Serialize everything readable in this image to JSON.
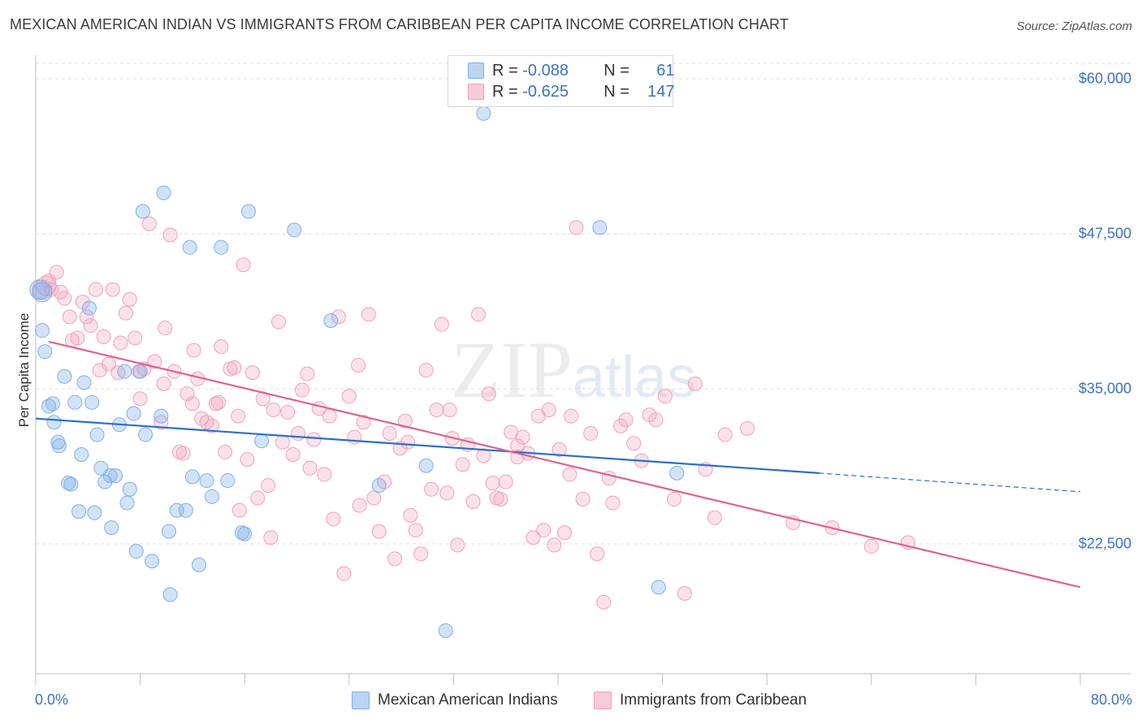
{
  "title": "MEXICAN AMERICAN INDIAN VS IMMIGRANTS FROM CARIBBEAN PER CAPITA INCOME CORRELATION CHART",
  "source": "Source: ZipAtlas.com",
  "watermark": {
    "zip": "ZIP",
    "atlas": "atlas"
  },
  "legend": {
    "rows": [
      {
        "r_label": "R =",
        "r_value": "-0.088",
        "n_label": "N =",
        "n_value": "61",
        "color": "#7eb0ea"
      },
      {
        "r_label": "R =",
        "r_value": "-0.625",
        "n_label": "N =",
        "n_value": "147",
        "color": "#f2a0b8"
      }
    ]
  },
  "bottom_legend": [
    "Mexican American Indians",
    "Immigrants from Caribbean"
  ],
  "colors": {
    "blue": "#7eb0ea",
    "blue_line": "#2d6ecc",
    "pink": "#f2a0b8",
    "pink_line": "#e0628e",
    "grid": "#dedede",
    "tick_text": "#3b73c4"
  },
  "chart_data": {
    "type": "scatter",
    "title": "MEXICAN AMERICAN INDIAN VS IMMIGRANTS FROM CARIBBEAN PER CAPITA INCOME CORRELATION CHART",
    "xlabel": "",
    "ylabel": "Per Capita Income",
    "xlim": [
      0,
      80
    ],
    "ylim": [
      12000,
      62000
    ],
    "x_tick_labels": [
      "0.0%",
      "80.0%"
    ],
    "y_ticks": [
      22500,
      35000,
      47500,
      60000
    ],
    "y_tick_labels": [
      "$22,500",
      "$35,000",
      "$47,500",
      "$60,000"
    ],
    "grid": true,
    "series": [
      {
        "name": "Mexican American Indians",
        "R": -0.088,
        "N": 61,
        "trend": {
          "x": [
            0,
            60
          ],
          "y": [
            32600,
            28200
          ],
          "dashed_to": [
            80,
            26700
          ]
        },
        "points": [
          [
            0.5,
            42800
          ],
          [
            0.5,
            39700
          ],
          [
            0.7,
            38000
          ],
          [
            1.0,
            33600
          ],
          [
            1.3,
            33800
          ],
          [
            1.4,
            32300
          ],
          [
            1.7,
            30700
          ],
          [
            1.8,
            30400
          ],
          [
            2.2,
            36000
          ],
          [
            2.5,
            27400
          ],
          [
            2.7,
            27300
          ],
          [
            3.0,
            33900
          ],
          [
            3.3,
            25100
          ],
          [
            3.5,
            29700
          ],
          [
            3.7,
            35500
          ],
          [
            4.1,
            41500
          ],
          [
            4.3,
            33900
          ],
          [
            4.5,
            25000
          ],
          [
            4.7,
            31300
          ],
          [
            5.0,
            28600
          ],
          [
            5.3,
            27500
          ],
          [
            5.7,
            28000
          ],
          [
            5.8,
            23800
          ],
          [
            6.1,
            28000
          ],
          [
            6.4,
            32100
          ],
          [
            6.8,
            36400
          ],
          [
            7.0,
            25800
          ],
          [
            7.2,
            26900
          ],
          [
            7.5,
            33000
          ],
          [
            7.7,
            21900
          ],
          [
            8.0,
            36400
          ],
          [
            8.2,
            49300
          ],
          [
            8.4,
            31300
          ],
          [
            8.9,
            21100
          ],
          [
            9.6,
            32800
          ],
          [
            9.8,
            50800
          ],
          [
            10.2,
            23500
          ],
          [
            10.3,
            18400
          ],
          [
            10.8,
            25200
          ],
          [
            11.5,
            25200
          ],
          [
            11.8,
            46400
          ],
          [
            12.0,
            27900
          ],
          [
            12.5,
            20800
          ],
          [
            13.1,
            27600
          ],
          [
            13.5,
            26300
          ],
          [
            14.2,
            46400
          ],
          [
            14.7,
            27600
          ],
          [
            15.8,
            23400
          ],
          [
            16.0,
            23300
          ],
          [
            16.3,
            49300
          ],
          [
            17.3,
            30800
          ],
          [
            19.8,
            47800
          ],
          [
            22.6,
            40500
          ],
          [
            26.3,
            27200
          ],
          [
            29.9,
            28800
          ],
          [
            31.4,
            15500
          ],
          [
            34.3,
            57200
          ],
          [
            43.2,
            48000
          ],
          [
            47.7,
            19000
          ],
          [
            49.1,
            28200
          ],
          [
            0.3,
            43000
          ]
        ]
      },
      {
        "name": "Immigrants from Caribbean",
        "R": -0.625,
        "N": 147,
        "trend": {
          "x": [
            1,
            80
          ],
          "y": [
            38800,
            19000
          ]
        },
        "points": [
          [
            0.5,
            43000
          ],
          [
            0.8,
            43300
          ],
          [
            1.0,
            43700
          ],
          [
            1.2,
            43000
          ],
          [
            1.6,
            44400
          ],
          [
            1.9,
            42800
          ],
          [
            2.2,
            42300
          ],
          [
            2.6,
            40800
          ],
          [
            2.8,
            38900
          ],
          [
            3.2,
            39100
          ],
          [
            3.6,
            42000
          ],
          [
            3.9,
            40800
          ],
          [
            4.2,
            40100
          ],
          [
            4.6,
            43000
          ],
          [
            4.9,
            36500
          ],
          [
            5.2,
            39200
          ],
          [
            5.6,
            37000
          ],
          [
            5.9,
            43000
          ],
          [
            6.3,
            36300
          ],
          [
            6.5,
            38700
          ],
          [
            6.9,
            41100
          ],
          [
            7.2,
            42200
          ],
          [
            7.6,
            39100
          ],
          [
            8.0,
            34200
          ],
          [
            8.3,
            36600
          ],
          [
            8.7,
            48300
          ],
          [
            9.1,
            37200
          ],
          [
            9.6,
            32300
          ],
          [
            9.9,
            39900
          ],
          [
            10.3,
            47400
          ],
          [
            10.6,
            36400
          ],
          [
            11.0,
            29900
          ],
          [
            11.3,
            29800
          ],
          [
            11.6,
            34600
          ],
          [
            12.0,
            33800
          ],
          [
            12.4,
            35800
          ],
          [
            12.7,
            32600
          ],
          [
            13.1,
            32300
          ],
          [
            13.5,
            32000
          ],
          [
            13.8,
            33800
          ],
          [
            14.2,
            38400
          ],
          [
            14.5,
            29900
          ],
          [
            14.9,
            36600
          ],
          [
            15.2,
            36700
          ],
          [
            15.5,
            32800
          ],
          [
            15.9,
            45000
          ],
          [
            16.2,
            29300
          ],
          [
            16.6,
            36300
          ],
          [
            17.0,
            26200
          ],
          [
            17.4,
            34200
          ],
          [
            17.8,
            27200
          ],
          [
            18.2,
            33300
          ],
          [
            18.6,
            40400
          ],
          [
            18.9,
            30700
          ],
          [
            19.3,
            33100
          ],
          [
            19.7,
            29700
          ],
          [
            20.1,
            31400
          ],
          [
            20.4,
            34900
          ],
          [
            20.8,
            36200
          ],
          [
            21.3,
            30900
          ],
          [
            21.7,
            33400
          ],
          [
            22.1,
            28100
          ],
          [
            22.5,
            32800
          ],
          [
            22.8,
            24500
          ],
          [
            23.2,
            40800
          ],
          [
            23.6,
            20100
          ],
          [
            24.0,
            34400
          ],
          [
            24.4,
            31100
          ],
          [
            24.8,
            25600
          ],
          [
            25.1,
            32300
          ],
          [
            25.5,
            41000
          ],
          [
            25.9,
            26200
          ],
          [
            26.3,
            23500
          ],
          [
            26.7,
            27500
          ],
          [
            27.1,
            31400
          ],
          [
            27.5,
            21300
          ],
          [
            27.9,
            30200
          ],
          [
            28.3,
            32400
          ],
          [
            28.7,
            24800
          ],
          [
            29.1,
            23600
          ],
          [
            29.5,
            21700
          ],
          [
            29.9,
            36500
          ],
          [
            30.3,
            26900
          ],
          [
            30.7,
            33300
          ],
          [
            31.1,
            40200
          ],
          [
            31.5,
            26600
          ],
          [
            31.9,
            31000
          ],
          [
            32.3,
            22400
          ],
          [
            32.7,
            28900
          ],
          [
            33.1,
            30500
          ],
          [
            33.5,
            25900
          ],
          [
            33.9,
            41000
          ],
          [
            34.3,
            29600
          ],
          [
            34.7,
            34600
          ],
          [
            35.0,
            27400
          ],
          [
            35.3,
            26200
          ],
          [
            35.6,
            26100
          ],
          [
            36.0,
            27500
          ],
          [
            36.4,
            31500
          ],
          [
            36.9,
            30400
          ],
          [
            37.3,
            31100
          ],
          [
            37.7,
            29800
          ],
          [
            38.1,
            23000
          ],
          [
            38.5,
            32800
          ],
          [
            38.9,
            23600
          ],
          [
            39.3,
            33300
          ],
          [
            39.7,
            22400
          ],
          [
            40.1,
            30100
          ],
          [
            40.5,
            23400
          ],
          [
            41.0,
            32800
          ],
          [
            41.4,
            48000
          ],
          [
            41.9,
            26100
          ],
          [
            42.5,
            31400
          ],
          [
            43.0,
            21700
          ],
          [
            43.5,
            17800
          ],
          [
            44.2,
            25800
          ],
          [
            44.8,
            32000
          ],
          [
            45.2,
            32500
          ],
          [
            45.8,
            30600
          ],
          [
            46.4,
            29200
          ],
          [
            47.0,
            32900
          ],
          [
            47.5,
            32500
          ],
          [
            48.2,
            34400
          ],
          [
            48.9,
            26100
          ],
          [
            49.7,
            18500
          ],
          [
            50.5,
            35400
          ],
          [
            51.3,
            28500
          ],
          [
            52.0,
            24600
          ],
          [
            52.8,
            31300
          ],
          [
            54.5,
            31800
          ],
          [
            58.0,
            24200
          ],
          [
            61.0,
            23800
          ],
          [
            64.0,
            22300
          ],
          [
            66.8,
            22600
          ],
          [
            7.9,
            36400
          ],
          [
            12.1,
            38100
          ],
          [
            14.0,
            33900
          ],
          [
            18.0,
            23000
          ],
          [
            21.0,
            28600
          ],
          [
            24.7,
            36900
          ],
          [
            28.5,
            30700
          ],
          [
            31.7,
            33300
          ],
          [
            36.9,
            29500
          ],
          [
            40.9,
            28100
          ],
          [
            43.9,
            27800
          ],
          [
            9.8,
            35400
          ],
          [
            15.6,
            25200
          ]
        ]
      }
    ]
  }
}
